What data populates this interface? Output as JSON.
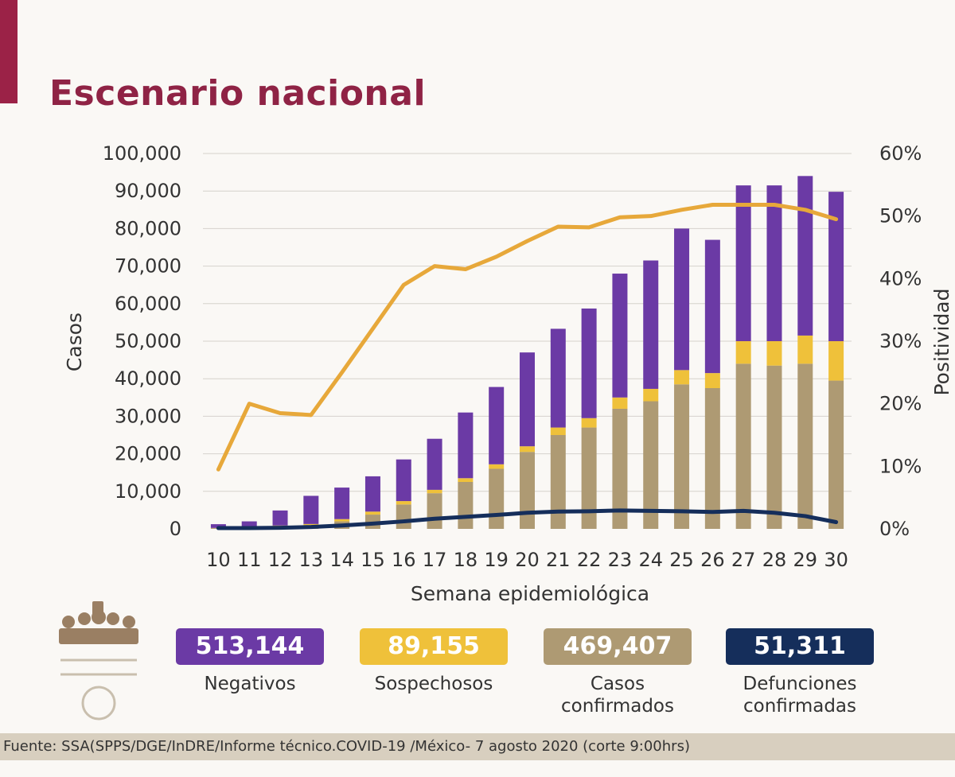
{
  "header": {
    "title": "Escenario nacional"
  },
  "chart_data": {
    "type": "bar",
    "title": "Escenario nacional",
    "xlabel": "Semana epidemiológica",
    "ylabel": "Casos",
    "y2label": "Positividad",
    "ylim": [
      0,
      100000
    ],
    "y2lim": [
      0,
      60
    ],
    "y_ticks": [
      "0",
      "10,000",
      "20,000",
      "30,000",
      "40,000",
      "50,000",
      "60,000",
      "70,000",
      "80,000",
      "90,000",
      "100,000"
    ],
    "y2_ticks": [
      "0%",
      "10%",
      "20%",
      "30%",
      "40%",
      "50%",
      "60%"
    ],
    "categories": [
      "10",
      "11",
      "12",
      "13",
      "14",
      "15",
      "16",
      "17",
      "18",
      "19",
      "20",
      "21",
      "22",
      "23",
      "24",
      "25",
      "26",
      "27",
      "28",
      "29",
      "30"
    ],
    "stacked_series": [
      {
        "key": "confirmados",
        "color": "#ae9a73",
        "values": [
          200,
          500,
          700,
          1000,
          2000,
          3800,
          6500,
          9500,
          12500,
          16000,
          20500,
          25000,
          27000,
          32000,
          34000,
          38500,
          37500,
          44000,
          43500,
          44000,
          39500
        ]
      },
      {
        "key": "sospechosos",
        "color": "#efc13a",
        "values": [
          50,
          100,
          200,
          300,
          600,
          800,
          900,
          900,
          1000,
          1200,
          1500,
          2000,
          2500,
          3000,
          3300,
          3800,
          4000,
          6000,
          6500,
          7500,
          10500
        ]
      },
      {
        "key": "negativos",
        "color": "#6b3aa5",
        "values": [
          1000,
          1400,
          4000,
          7500,
          8400,
          9400,
          11100,
          13600,
          17500,
          20600,
          25000,
          26300,
          29200,
          33000,
          34200,
          37700,
          35500,
          41500,
          41500,
          42500,
          39800
        ]
      }
    ],
    "lines": [
      {
        "key": "positividad",
        "color": "#e7a83a",
        "axis": "right",
        "values": [
          9.5,
          20,
          18.5,
          18.2,
          25,
          32,
          39,
          42,
          41.5,
          43.5,
          46,
          48.3,
          48.2,
          49.8,
          50,
          51,
          51.8,
          51.8,
          51.8,
          51,
          49.5
        ]
      },
      {
        "key": "defunciones",
        "color": "#152e5b",
        "axis": "left",
        "values": [
          200,
          200,
          300,
          500,
          900,
          1400,
          2000,
          2700,
          3200,
          3700,
          4300,
          4600,
          4700,
          4900,
          4800,
          4700,
          4500,
          4800,
          4300,
          3400,
          1800
        ]
      }
    ]
  },
  "stats": [
    {
      "value": "513,144",
      "label_lines": [
        "Negativos"
      ],
      "color": "#6b3aa5"
    },
    {
      "value": "89,155",
      "label_lines": [
        "Sospechosos"
      ],
      "color": "#efc13a"
    },
    {
      "value": "469,407",
      "label_lines": [
        "Casos",
        "confirmados"
      ],
      "color": "#ae9a73"
    },
    {
      "value": "51,311",
      "label_lines": [
        "Defunciones",
        "confirmadas"
      ],
      "color": "#152e5b"
    }
  ],
  "footer": {
    "source": "Fuente: SSA(SPPS/DGE/InDRE/Informe técnico.COVID-19 /México- 7 agosto 2020 (corte 9:00hrs)"
  }
}
